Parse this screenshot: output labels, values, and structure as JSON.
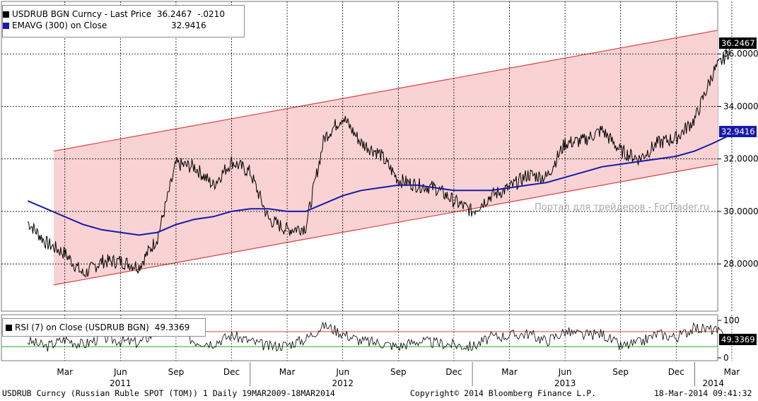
{
  "legend_main": {
    "line1_prefix": "USDRUB BGN Curncy - Last Price",
    "line1_last": "36.2467",
    "line1_change": "-.0210",
    "line2_prefix": "EMAVG (300) on Close",
    "line2_value": "32.9416"
  },
  "legend_rsi": {
    "label": "RSI (7) on Close (USDRUB BGN)",
    "value": "49.3369"
  },
  "flags": {
    "price": "36.2467",
    "ema": "32.9416",
    "rsi": "49.3369"
  },
  "watermark": "Портал для трейдеров - ForTrader.ru",
  "footer": {
    "left": "USDRUB Curncy (Russian Ruble SPOT (TOM)) 1  Daily 19MAR2009-18MAR2014",
    "center": "Copyright© 2014 Bloomberg Finance L.P.",
    "right": "18-Mar-2014 09:41:32"
  },
  "colors": {
    "price": "#000000",
    "ema": "#1a1aa8",
    "channel_fill": "#f9d3d3",
    "channel_line": "#d94040",
    "rsi_upper": "#d94040",
    "rsi_lower": "#2ca02c",
    "rsi_overbought_fill": "#f2a6a6",
    "rsi_oversold_fill": "#a6dba6"
  },
  "chart_data": [
    {
      "type": "line",
      "title": "USDRUB BGN Curncy - Last Price",
      "y_ticks": [
        "28.0000",
        "30.0000",
        "32.0000",
        "34.0000",
        "36.0000"
      ],
      "ylim": [
        26.2,
        38.0
      ],
      "x_month_labels": [
        "Mar",
        "Jun",
        "Sep",
        "Dec",
        "Mar",
        "Jun",
        "Sep",
        "Dec",
        "Mar",
        "Jun",
        "Sep",
        "Dec",
        "Mar"
      ],
      "x_year_labels": [
        "2011",
        "2012",
        "2013",
        "2014"
      ],
      "grid": true,
      "last_price": 36.2467,
      "series": [
        {
          "name": "USDRUB BGN Curncy - Last Price",
          "x": [
            "2011-01",
            "2011-02",
            "2011-03",
            "2011-04",
            "2011-05",
            "2011-06",
            "2011-07",
            "2011-08",
            "2011-09",
            "2011-10",
            "2011-11",
            "2011-12",
            "2012-01",
            "2012-02",
            "2012-03",
            "2012-04",
            "2012-05",
            "2012-06",
            "2012-07",
            "2012-08",
            "2012-09",
            "2012-10",
            "2012-11",
            "2012-12",
            "2013-01",
            "2013-02",
            "2013-03",
            "2013-04",
            "2013-05",
            "2013-06",
            "2013-07",
            "2013-08",
            "2013-09",
            "2013-10",
            "2013-11",
            "2013-12",
            "2014-01",
            "2014-02",
            "2014-03"
          ],
          "values": [
            29.6,
            28.8,
            28.4,
            27.6,
            28.1,
            28.1,
            27.9,
            29.0,
            31.8,
            31.7,
            31.0,
            31.9,
            31.5,
            29.7,
            29.3,
            29.4,
            32.8,
            33.6,
            32.6,
            32.2,
            31.2,
            31.0,
            30.9,
            30.4,
            30.0,
            30.6,
            30.9,
            31.4,
            31.3,
            32.6,
            32.7,
            33.1,
            32.3,
            32.0,
            32.6,
            32.8,
            33.5,
            35.3,
            36.25
          ]
        },
        {
          "name": "EMAVG (300) on Close",
          "x": [
            "2011-01",
            "2011-02",
            "2011-03",
            "2011-04",
            "2011-05",
            "2011-06",
            "2011-07",
            "2011-08",
            "2011-09",
            "2011-10",
            "2011-11",
            "2011-12",
            "2012-01",
            "2012-02",
            "2012-03",
            "2012-04",
            "2012-05",
            "2012-06",
            "2012-07",
            "2012-08",
            "2012-09",
            "2012-10",
            "2012-11",
            "2012-12",
            "2013-01",
            "2013-02",
            "2013-03",
            "2013-04",
            "2013-05",
            "2013-06",
            "2013-07",
            "2013-08",
            "2013-09",
            "2013-10",
            "2013-11",
            "2013-12",
            "2014-01",
            "2014-02",
            "2014-03"
          ],
          "values": [
            30.4,
            30.1,
            29.8,
            29.5,
            29.3,
            29.2,
            29.1,
            29.2,
            29.5,
            29.7,
            29.8,
            30.0,
            30.1,
            30.1,
            30.0,
            30.0,
            30.3,
            30.6,
            30.8,
            30.9,
            31.0,
            31.0,
            30.9,
            30.8,
            30.8,
            30.8,
            30.9,
            31.0,
            31.1,
            31.3,
            31.5,
            31.7,
            31.8,
            31.9,
            32.0,
            32.1,
            32.3,
            32.6,
            32.94
          ]
        }
      ]
    },
    {
      "type": "line",
      "title": "RSI (7) on Close (USDRUB BGN)",
      "y_ticks": [
        "0",
        "100"
      ],
      "ylim": [
        0,
        100
      ],
      "upper_level": 70,
      "lower_level": 30,
      "last_value": 49.3369,
      "series": [
        {
          "name": "RSI (7) on Close (USDRUB BGN)",
          "x": [
            "2011-01",
            "2011-02",
            "2011-03",
            "2011-04",
            "2011-05",
            "2011-06",
            "2011-07",
            "2011-08",
            "2011-09",
            "2011-10",
            "2011-11",
            "2011-12",
            "2012-01",
            "2012-02",
            "2012-03",
            "2012-04",
            "2012-05",
            "2012-06",
            "2012-07",
            "2012-08",
            "2012-09",
            "2012-10",
            "2012-11",
            "2012-12",
            "2013-01",
            "2013-02",
            "2013-03",
            "2013-04",
            "2013-05",
            "2013-06",
            "2013-07",
            "2013-08",
            "2013-09",
            "2013-10",
            "2013-11",
            "2013-12",
            "2014-01",
            "2014-02",
            "2014-03"
          ],
          "values": [
            45,
            30,
            50,
            35,
            55,
            45,
            40,
            70,
            75,
            45,
            40,
            60,
            45,
            30,
            35,
            50,
            88,
            65,
            45,
            40,
            30,
            45,
            40,
            35,
            30,
            55,
            60,
            65,
            45,
            70,
            60,
            65,
            30,
            40,
            65,
            55,
            80,
            75,
            49.34
          ]
        }
      ]
    }
  ]
}
